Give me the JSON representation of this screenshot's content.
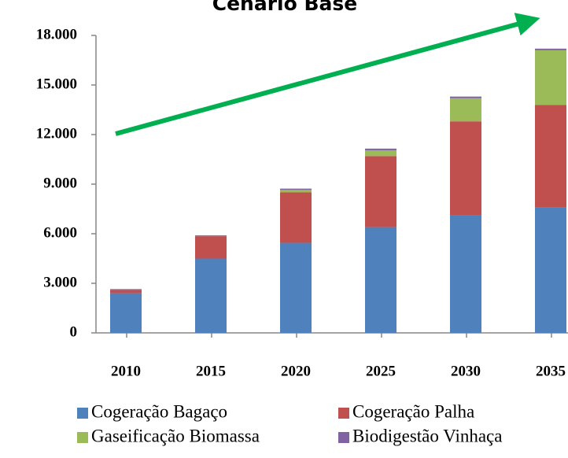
{
  "chart_data": {
    "type": "stacked_bar",
    "title": "Cenário Base",
    "categories": [
      "2010",
      "2015",
      "2020",
      "2025",
      "2030",
      "2035"
    ],
    "series": [
      {
        "name": "Cogeração Bagaço",
        "color": "#4f81bd",
        "values": [
          2400,
          4500,
          5450,
          6400,
          7100,
          7600
        ]
      },
      {
        "name": "Cogeração Palha",
        "color": "#c0504d",
        "values": [
          200,
          1350,
          3050,
          4300,
          5700,
          6200
        ]
      },
      {
        "name": "Gaseificação Biomassa",
        "color": "#9bbb59",
        "values": [
          0,
          0,
          150,
          350,
          1400,
          3300
        ]
      },
      {
        "name": "Biodigestão Vinhaça",
        "color": "#8064a2",
        "values": [
          50,
          50,
          80,
          100,
          100,
          100
        ]
      }
    ],
    "ylim": [
      0,
      18000
    ],
    "yticks": [
      0,
      {
        "value": 3000,
        "label": "3.000"
      },
      {
        "value": 6000,
        "label": "6.000"
      },
      {
        "value": 9000,
        "label": "9.000"
      },
      {
        "value": 12000,
        "label": "12.000"
      },
      {
        "value": 15000,
        "label": "15.000"
      },
      {
        "value": 18000,
        "label": "18.000"
      }
    ],
    "grid": false
  }
}
